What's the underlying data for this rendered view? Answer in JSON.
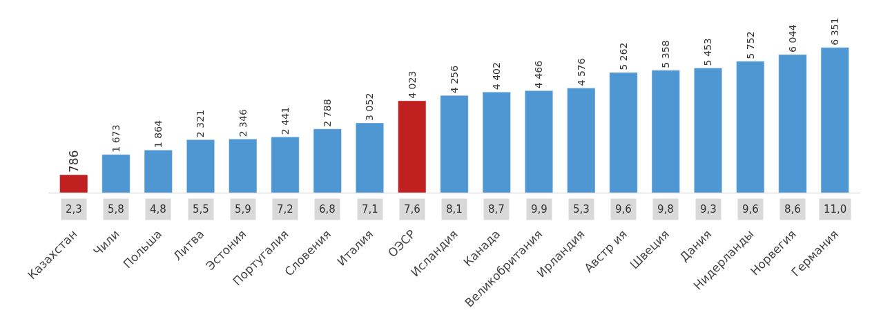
{
  "chart_data": {
    "type": "bar",
    "categories": [
      "Казахстан",
      "Чили",
      "Польша",
      "Литва",
      "Эстония",
      "Португалия",
      "Словения",
      "Италия",
      "ОЭСР",
      "Исландия",
      "Канада",
      "Великобритания",
      "Ирландия",
      "Австр ия",
      "Швеция",
      "Дания",
      "Нидерланды",
      "Норвегия",
      "Германия"
    ],
    "values": [
      786,
      1673,
      1864,
      2321,
      2346,
      2441,
      2788,
      3052,
      4023,
      4256,
      4402,
      4466,
      4576,
      5262,
      5358,
      5453,
      5752,
      6044,
      6351
    ],
    "value_labels": [
      "786",
      "1 673",
      "1 864",
      "2 321",
      "2 346",
      "2 441",
      "2 788",
      "3 052",
      "4 023",
      "4 256",
      "4 402",
      "4 466",
      "4 576",
      "5 262",
      "5 358",
      "5 453",
      "5 752",
      "6 044",
      "6 351"
    ],
    "colors": [
      "#c0201f",
      "#4e97d2",
      "#4e97d2",
      "#4e97d2",
      "#4e97d2",
      "#4e97d2",
      "#4e97d2",
      "#4e97d2",
      "#c0201f",
      "#4e97d2",
      "#4e97d2",
      "#4e97d2",
      "#4e97d2",
      "#4e97d2",
      "#4e97d2",
      "#4e97d2",
      "#4e97d2",
      "#4e97d2",
      "#4e97d2"
    ],
    "annotations": [
      "2,3",
      "5,8",
      "4,8",
      "5,5",
      "5,9",
      "7,2",
      "6,8",
      "7,1",
      "7,6",
      "8,1",
      "8,7",
      "9,9",
      "5,3",
      "9,6",
      "9,8",
      "9,3",
      "9,6",
      "8,6",
      "11,0"
    ]
  }
}
